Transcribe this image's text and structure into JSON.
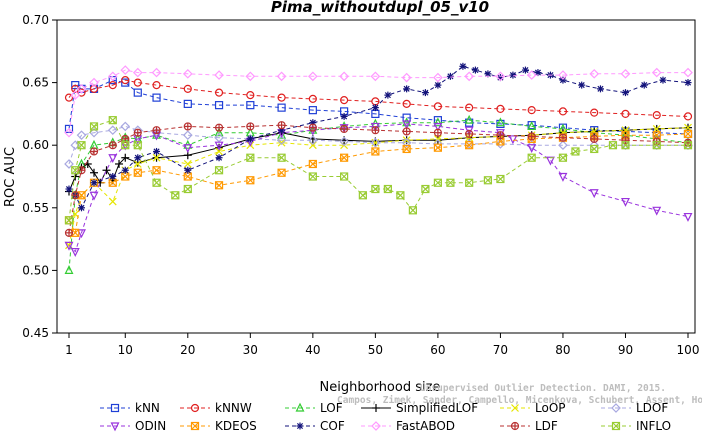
{
  "chart_data": {
    "type": "line",
    "title": "Pima_withoutdupl_05_v10",
    "xlabel": "Neighborhood size",
    "ylabel": "ROC AUC",
    "xlim": [
      1,
      100
    ],
    "ylim": [
      0.45,
      0.7
    ],
    "x_ticks": [
      1,
      10,
      20,
      30,
      40,
      50,
      60,
      70,
      80,
      90,
      100
    ],
    "y_ticks": [
      0.45,
      0.5,
      0.55,
      0.6,
      0.65,
      0.7
    ],
    "x_tick_labels": [
      "1",
      "10",
      "20",
      "30",
      "40",
      "50",
      "60",
      "70",
      "80",
      "90",
      "100"
    ],
    "y_tick_labels": [
      "0.45",
      "0.50",
      "0.55",
      "0.60",
      "0.65",
      "0.70"
    ],
    "grid": false,
    "legend_position": "bottom",
    "watermark": {
      "line1": "Unsupervised Outlier Detection. DAMI, 2015.",
      "line2": "Campos, Zimek, Sander, Campello, Micenkova, Schubert, Assent, Houle"
    },
    "series": [
      {
        "name": "kNN",
        "color": "#1f3fd6",
        "marker": "square",
        "dash": "dash",
        "x": [
          1,
          2,
          3,
          5,
          8,
          10,
          12,
          15,
          20,
          25,
          30,
          35,
          40,
          45,
          50,
          55,
          60,
          65,
          70,
          75,
          80,
          85,
          90,
          95,
          100
        ],
        "y": [
          0.613,
          0.648,
          0.645,
          0.645,
          0.652,
          0.65,
          0.642,
          0.638,
          0.633,
          0.632,
          0.632,
          0.63,
          0.628,
          0.627,
          0.625,
          0.622,
          0.62,
          0.618,
          0.617,
          0.616,
          0.614,
          0.612,
          0.611,
          0.61,
          0.609
        ]
      },
      {
        "name": "kNNW",
        "color": "#e02020",
        "marker": "circle",
        "dash": "dash",
        "x": [
          1,
          2,
          3,
          5,
          8,
          10,
          12,
          15,
          20,
          25,
          30,
          35,
          40,
          45,
          50,
          55,
          60,
          65,
          70,
          75,
          80,
          85,
          90,
          95,
          100
        ],
        "y": [
          0.638,
          0.645,
          0.642,
          0.645,
          0.648,
          0.652,
          0.65,
          0.648,
          0.645,
          0.642,
          0.64,
          0.638,
          0.637,
          0.636,
          0.635,
          0.633,
          0.631,
          0.63,
          0.629,
          0.628,
          0.627,
          0.626,
          0.625,
          0.624,
          0.623
        ]
      },
      {
        "name": "LOF",
        "color": "#33cc33",
        "marker": "triangle-up",
        "dash": "dash",
        "x": [
          1,
          2,
          3,
          5,
          8,
          10,
          12,
          15,
          20,
          25,
          30,
          35,
          40,
          45,
          50,
          55,
          60,
          65,
          70,
          75,
          80,
          85,
          90,
          95,
          100
        ],
        "y": [
          0.5,
          0.56,
          0.585,
          0.6,
          0.602,
          0.606,
          0.605,
          0.608,
          0.6,
          0.61,
          0.61,
          0.608,
          0.612,
          0.615,
          0.617,
          0.618,
          0.618,
          0.62,
          0.618,
          0.615,
          0.613,
          0.61,
          0.608,
          0.605,
          0.602
        ]
      },
      {
        "name": "SimplifiedLOF",
        "color": "#000000",
        "marker": "plus",
        "dash": "solid",
        "x": [
          1,
          2,
          3,
          4,
          5,
          6,
          7,
          8,
          9,
          10,
          12,
          15,
          20,
          25,
          30,
          35,
          40,
          45,
          50,
          55,
          60,
          65,
          70,
          75,
          80,
          85,
          90,
          95,
          100
        ],
        "y": [
          0.563,
          0.575,
          0.582,
          0.585,
          0.578,
          0.57,
          0.58,
          0.572,
          0.585,
          0.59,
          0.586,
          0.59,
          0.592,
          0.598,
          0.605,
          0.61,
          0.605,
          0.604,
          0.603,
          0.604,
          0.604,
          0.606,
          0.607,
          0.608,
          0.61,
          0.611,
          0.612,
          0.613,
          0.614
        ]
      },
      {
        "name": "LoOP",
        "color": "#e6e600",
        "marker": "x",
        "dash": "dash",
        "x": [
          1,
          2,
          3,
          5,
          8,
          10,
          12,
          15,
          20,
          25,
          30,
          35,
          40,
          45,
          50,
          55,
          60,
          65,
          70,
          75,
          80,
          85,
          90,
          95,
          100
        ],
        "y": [
          0.52,
          0.545,
          0.56,
          0.57,
          0.555,
          0.58,
          0.585,
          0.59,
          0.585,
          0.595,
          0.6,
          0.602,
          0.6,
          0.6,
          0.602,
          0.604,
          0.605,
          0.606,
          0.607,
          0.608,
          0.61,
          0.611,
          0.612,
          0.613,
          0.614
        ]
      },
      {
        "name": "LDOF",
        "color": "#a8a8e0",
        "marker": "diamond",
        "dash": "dash",
        "x": [
          1,
          2,
          3,
          5,
          8,
          10,
          12,
          15,
          20,
          25,
          30,
          35,
          40,
          45,
          50,
          55,
          60,
          65,
          70,
          75,
          80,
          85,
          90,
          95,
          100
        ],
        "y": [
          0.585,
          0.6,
          0.608,
          0.61,
          0.612,
          0.615,
          0.612,
          0.61,
          0.608,
          0.606,
          0.605,
          0.604,
          0.604,
          0.603,
          0.602,
          0.602,
          0.601,
          0.601,
          0.601,
          0.6,
          0.6,
          0.6,
          0.6,
          0.6,
          0.6
        ]
      },
      {
        "name": "ODIN",
        "color": "#9933dd",
        "marker": "triangle-down",
        "dash": "dash",
        "x": [
          1,
          2,
          3,
          5,
          8,
          10,
          12,
          15,
          20,
          25,
          30,
          35,
          40,
          45,
          50,
          55,
          60,
          65,
          70,
          72,
          75,
          78,
          80,
          85,
          90,
          95,
          100
        ],
        "y": [
          0.52,
          0.515,
          0.53,
          0.56,
          0.59,
          0.6,
          0.605,
          0.608,
          0.598,
          0.6,
          0.603,
          0.61,
          0.612,
          0.614,
          0.615,
          0.617,
          0.615,
          0.612,
          0.61,
          0.605,
          0.598,
          0.588,
          0.575,
          0.562,
          0.555,
          0.548,
          0.543
        ]
      },
      {
        "name": "KDEOS",
        "color": "#ff9900",
        "marker": "square-x",
        "dash": "dash",
        "x": [
          1,
          2,
          3,
          5,
          8,
          10,
          12,
          15,
          20,
          25,
          30,
          35,
          40,
          45,
          50,
          55,
          60,
          65,
          70,
          75,
          80,
          85,
          90,
          95,
          100
        ],
        "y": [
          0.54,
          0.53,
          0.56,
          0.57,
          0.57,
          0.575,
          0.578,
          0.58,
          0.575,
          0.568,
          0.572,
          0.578,
          0.585,
          0.59,
          0.595,
          0.597,
          0.598,
          0.6,
          0.603,
          0.605,
          0.606,
          0.607,
          0.608,
          0.608,
          0.609
        ]
      },
      {
        "name": "COF",
        "color": "#12127a",
        "marker": "asterisk",
        "dash": "dash",
        "x": [
          1,
          2,
          3,
          5,
          8,
          10,
          12,
          15,
          20,
          25,
          30,
          35,
          40,
          45,
          50,
          52,
          55,
          58,
          60,
          62,
          64,
          66,
          68,
          70,
          72,
          74,
          76,
          78,
          80,
          83,
          86,
          90,
          93,
          96,
          100
        ],
        "y": [
          0.565,
          0.56,
          0.55,
          0.57,
          0.575,
          0.58,
          0.59,
          0.595,
          0.58,
          0.59,
          0.605,
          0.612,
          0.618,
          0.623,
          0.63,
          0.64,
          0.645,
          0.642,
          0.648,
          0.655,
          0.663,
          0.66,
          0.657,
          0.654,
          0.656,
          0.66,
          0.658,
          0.656,
          0.652,
          0.648,
          0.645,
          0.642,
          0.648,
          0.652,
          0.65
        ]
      },
      {
        "name": "FastABOD",
        "color": "#ff99ff",
        "marker": "diamond",
        "dash": "dash",
        "x": [
          1,
          2,
          3,
          5,
          8,
          10,
          12,
          15,
          20,
          25,
          30,
          35,
          40,
          45,
          50,
          55,
          60,
          65,
          70,
          75,
          80,
          85,
          90,
          95,
          100
        ],
        "y": [
          0.61,
          0.64,
          0.645,
          0.65,
          0.655,
          0.66,
          0.658,
          0.658,
          0.657,
          0.656,
          0.655,
          0.655,
          0.655,
          0.655,
          0.655,
          0.654,
          0.654,
          0.655,
          0.655,
          0.656,
          0.656,
          0.657,
          0.657,
          0.658,
          0.658
        ]
      },
      {
        "name": "LDF",
        "color": "#b83232",
        "marker": "circle-plus",
        "dash": "dash",
        "x": [
          1,
          2,
          3,
          5,
          8,
          10,
          12,
          15,
          20,
          25,
          30,
          35,
          40,
          45,
          50,
          55,
          60,
          65,
          70,
          75,
          80,
          85,
          90,
          95,
          100
        ],
        "y": [
          0.53,
          0.56,
          0.58,
          0.595,
          0.6,
          0.605,
          0.61,
          0.612,
          0.615,
          0.614,
          0.615,
          0.616,
          0.614,
          0.613,
          0.612,
          0.611,
          0.61,
          0.609,
          0.608,
          0.607,
          0.606,
          0.605,
          0.604,
          0.603,
          0.602
        ]
      },
      {
        "name": "INFLO",
        "color": "#99cc33",
        "marker": "square-x",
        "dash": "dash",
        "x": [
          1,
          2,
          3,
          5,
          8,
          10,
          12,
          15,
          18,
          20,
          25,
          30,
          35,
          40,
          45,
          48,
          50,
          52,
          54,
          56,
          58,
          60,
          62,
          65,
          68,
          70,
          75,
          80,
          82,
          85,
          88,
          90,
          95,
          100
        ],
        "y": [
          0.54,
          0.58,
          0.6,
          0.615,
          0.62,
          0.6,
          0.6,
          0.57,
          0.56,
          0.565,
          0.58,
          0.59,
          0.59,
          0.575,
          0.575,
          0.56,
          0.565,
          0.565,
          0.56,
          0.548,
          0.565,
          0.57,
          0.57,
          0.57,
          0.572,
          0.573,
          0.59,
          0.59,
          0.595,
          0.597,
          0.6,
          0.6,
          0.6,
          0.6
        ]
      }
    ]
  }
}
